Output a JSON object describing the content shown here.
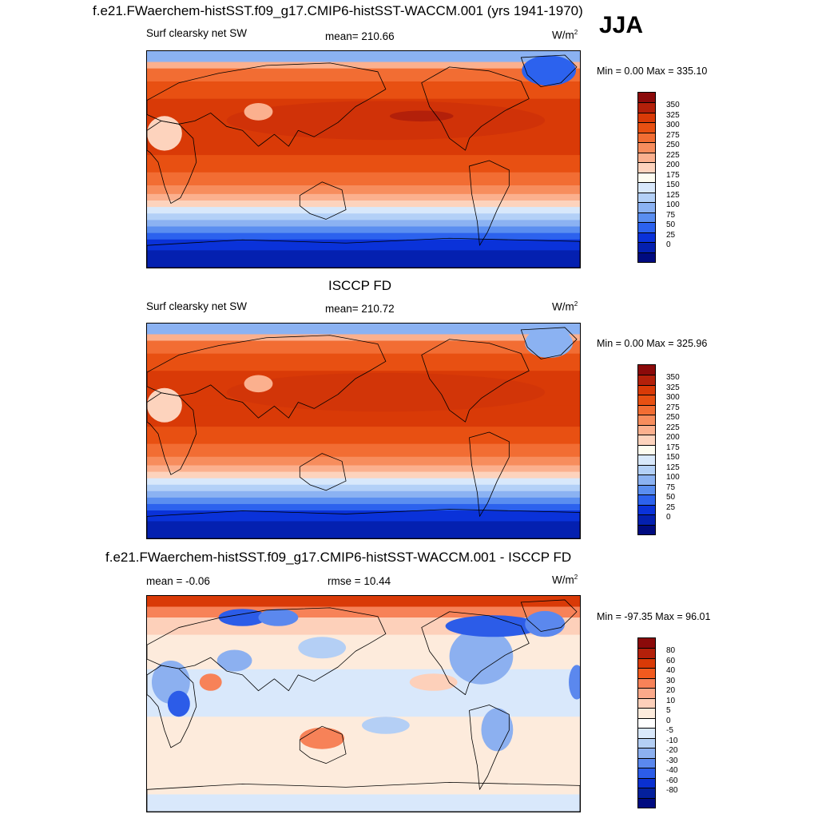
{
  "main_title": "f.e21.FWaerchem-histSST.f09_g17.CMIP6-histSST-WACCM.001 (yrs 1941-1970)",
  "season": "JJA",
  "panels": [
    {
      "title": "",
      "var_label": "Surf clearsky net SW",
      "stat1": "mean= 210.66",
      "stat2": "",
      "units": "W/m",
      "units_sup": "2",
      "minmax": "Min =   0.00 Max = 335.10",
      "colorbar": {
        "labels": [
          "350",
          "325",
          "300",
          "275",
          "250",
          "225",
          "200",
          "175",
          "150",
          "125",
          "100",
          "75",
          "50",
          "25",
          "0"
        ],
        "colors": [
          "#8b0a0a",
          "#b3200a",
          "#d93a07",
          "#e85012",
          "#f26d33",
          "#f78d5d",
          "#fbb08e",
          "#fdd3bd",
          "#fdfcf0",
          "#d8e8fb",
          "#b3d0f7",
          "#8bb2f2",
          "#5a8ef0",
          "#2c62ee",
          "#0a32d9",
          "#0420b0",
          "#000b80"
        ]
      },
      "map_kind": "mean"
    },
    {
      "title": "ISCCP FD",
      "var_label": "Surf clearsky net SW",
      "stat1": "mean= 210.72",
      "stat2": "",
      "units": "W/m",
      "units_sup": "2",
      "minmax": "Min =   0.00 Max = 325.96",
      "colorbar": {
        "labels": [
          "350",
          "325",
          "300",
          "275",
          "250",
          "225",
          "200",
          "175",
          "150",
          "125",
          "100",
          "75",
          "50",
          "25",
          "0"
        ],
        "colors": [
          "#8b0a0a",
          "#b3200a",
          "#d93a07",
          "#e85012",
          "#f26d33",
          "#f78d5d",
          "#fbb08e",
          "#fdd3bd",
          "#fdfcf0",
          "#d8e8fb",
          "#b3d0f7",
          "#8bb2f2",
          "#5a8ef0",
          "#2c62ee",
          "#0a32d9",
          "#0420b0",
          "#000b80"
        ]
      },
      "map_kind": "obs"
    },
    {
      "title": "f.e21.FWaerchem-histSST.f09_g17.CMIP6-histSST-WACCM.001 - ISCCP FD",
      "var_label": "",
      "stat1": "mean =  -0.06",
      "stat2": "rmse =  10.44",
      "units": "W/m",
      "units_sup": "2",
      "minmax": "Min = -97.35 Max =  96.01",
      "colorbar": {
        "labels": [
          "80",
          "60",
          "40",
          "30",
          "20",
          "10",
          "5",
          "0",
          "-5",
          "-10",
          "-20",
          "-30",
          "-40",
          "-60",
          "-80"
        ],
        "colors": [
          "#8b0a0a",
          "#b3200a",
          "#d93a07",
          "#f25a1e",
          "#f78258",
          "#fba98a",
          "#fdd0ba",
          "#fdebdc",
          "#ffffff",
          "#d9e8fb",
          "#b4cff5",
          "#8cb0f0",
          "#5b88ee",
          "#2c5ce8",
          "#0a30d0",
          "#04209c",
          "#000b80"
        ]
      },
      "map_kind": "diff"
    }
  ]
}
